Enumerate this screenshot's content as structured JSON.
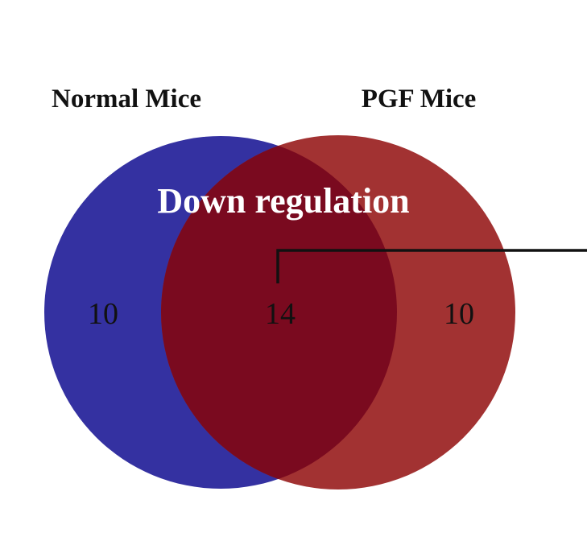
{
  "title": "Down regulation",
  "sets": [
    {
      "label": "Normal Mice"
    },
    {
      "label": "PGF Mice"
    }
  ],
  "regions": {
    "left_only": 10,
    "both": 14,
    "right_only": 10
  }
}
